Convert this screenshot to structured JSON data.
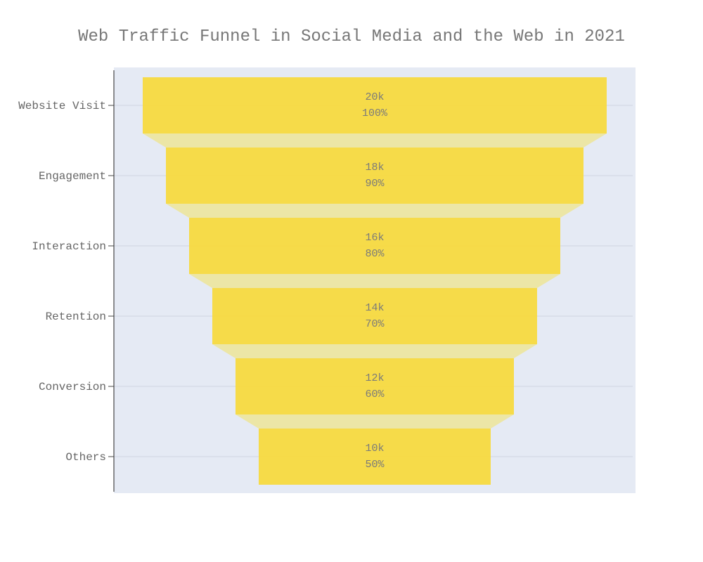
{
  "chart_data": {
    "type": "funnel",
    "title": "Web Traffic Funnel in Social Media and the Web in 2021",
    "categories": [
      "Website Visit",
      "Engagement",
      "Interaction",
      "Retention",
      "Conversion",
      "Others"
    ],
    "values": [
      20000,
      18000,
      16000,
      14000,
      12000,
      10000
    ],
    "value_labels": [
      "20k",
      "18k",
      "16k",
      "14k",
      "12k",
      "10k"
    ],
    "percent_labels": [
      "100%",
      "90%",
      "80%",
      "70%",
      "60%",
      "50%"
    ],
    "xlabel": "",
    "ylabel": "",
    "grid": true,
    "legend": "none",
    "colors": {
      "bar": "#f7d93a",
      "connector": "#ece6a6",
      "plot_bg": "#e5eaf4",
      "grid": "#d6dbe6",
      "axis": "#222222"
    }
  }
}
